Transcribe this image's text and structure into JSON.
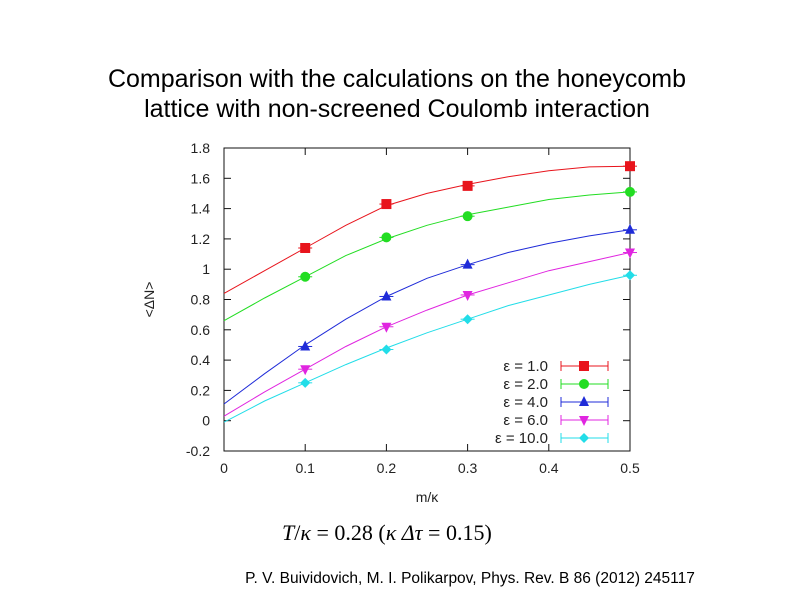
{
  "slide": {
    "title_line1": "Comparison with the calculations on the honeycomb",
    "title_line2": "lattice with non-screened Coulomb interaction",
    "formula": {
      "lhs_var": "T",
      "lhs_den": "κ",
      "value1": "= 0.28",
      "paren_open": "(",
      "kappa": "κ",
      "delta_tau": "Δτ",
      "value2": "= 0.15",
      "paren_close": ")"
    },
    "citation": "P. V. Buividovich, M. I. Polikarpov, Phys. Rev. B 86 (2012) 245117"
  },
  "chart_data": {
    "type": "line",
    "title": "",
    "xlabel": "m/κ",
    "ylabel": "<ΔN>",
    "xlim": [
      0,
      0.5
    ],
    "ylim": [
      -0.2,
      1.8
    ],
    "xticks": [
      0,
      0.1,
      0.2,
      0.3,
      0.4,
      0.5
    ],
    "xtick_labels": [
      "0",
      "0.1",
      "0.2",
      "0.3",
      "0.4",
      "0.5"
    ],
    "yticks": [
      -0.2,
      0,
      0.2,
      0.4,
      0.6,
      0.8,
      1,
      1.2,
      1.4,
      1.6,
      1.8
    ],
    "ytick_labels": [
      "-0.2",
      "0",
      "0.2",
      "0.4",
      "0.6",
      "0.8",
      "1",
      "1.2",
      "1.4",
      "1.6",
      "1.8"
    ],
    "grid": false,
    "legend_position": "bottom-right",
    "series": [
      {
        "name": "ε = 1.0",
        "color": "#e8141c",
        "marker": "square",
        "points": [
          [
            0.1,
            1.14
          ],
          [
            0.2,
            1.43
          ],
          [
            0.3,
            1.55
          ],
          [
            0.5,
            1.68
          ]
        ],
        "curve": [
          [
            0,
            0.84
          ],
          [
            0.05,
            0.99
          ],
          [
            0.1,
            1.14
          ],
          [
            0.15,
            1.29
          ],
          [
            0.2,
            1.42
          ],
          [
            0.25,
            1.5
          ],
          [
            0.3,
            1.56
          ],
          [
            0.35,
            1.61
          ],
          [
            0.4,
            1.65
          ],
          [
            0.45,
            1.675
          ],
          [
            0.5,
            1.68
          ]
        ]
      },
      {
        "name": "ε = 2.0",
        "color": "#22dd22",
        "marker": "circle",
        "points": [
          [
            0.1,
            0.95
          ],
          [
            0.2,
            1.21
          ],
          [
            0.3,
            1.35
          ],
          [
            0.5,
            1.51
          ]
        ],
        "curve": [
          [
            0,
            0.66
          ],
          [
            0.05,
            0.81
          ],
          [
            0.1,
            0.95
          ],
          [
            0.15,
            1.09
          ],
          [
            0.2,
            1.2
          ],
          [
            0.25,
            1.29
          ],
          [
            0.3,
            1.36
          ],
          [
            0.35,
            1.41
          ],
          [
            0.4,
            1.46
          ],
          [
            0.45,
            1.49
          ],
          [
            0.5,
            1.51
          ]
        ]
      },
      {
        "name": "ε = 4.0",
        "color": "#1f2bd8",
        "marker": "triangle-up",
        "points": [
          [
            0.1,
            0.49
          ],
          [
            0.2,
            0.82
          ],
          [
            0.3,
            1.03
          ],
          [
            0.5,
            1.26
          ]
        ],
        "curve": [
          [
            0,
            0.11
          ],
          [
            0.05,
            0.31
          ],
          [
            0.1,
            0.5
          ],
          [
            0.15,
            0.67
          ],
          [
            0.2,
            0.82
          ],
          [
            0.25,
            0.94
          ],
          [
            0.3,
            1.03
          ],
          [
            0.35,
            1.11
          ],
          [
            0.4,
            1.17
          ],
          [
            0.45,
            1.22
          ],
          [
            0.5,
            1.26
          ]
        ]
      },
      {
        "name": "ε = 6.0",
        "color": "#e025e0",
        "marker": "triangle-down",
        "points": [
          [
            0.1,
            0.34
          ],
          [
            0.2,
            0.62
          ],
          [
            0.3,
            0.83
          ],
          [
            0.5,
            1.11
          ]
        ],
        "curve": [
          [
            0,
            0.03
          ],
          [
            0.05,
            0.19
          ],
          [
            0.1,
            0.34
          ],
          [
            0.15,
            0.49
          ],
          [
            0.2,
            0.62
          ],
          [
            0.25,
            0.73
          ],
          [
            0.3,
            0.83
          ],
          [
            0.35,
            0.91
          ],
          [
            0.4,
            0.99
          ],
          [
            0.45,
            1.05
          ],
          [
            0.5,
            1.11
          ]
        ]
      },
      {
        "name": "ε = 10.0",
        "color": "#22dde8",
        "marker": "diamond",
        "points": [
          [
            0.1,
            0.25
          ],
          [
            0.2,
            0.47
          ],
          [
            0.3,
            0.67
          ],
          [
            0.5,
            0.96
          ]
        ],
        "curve": [
          [
            0,
            -0.01
          ],
          [
            0.05,
            0.13
          ],
          [
            0.1,
            0.25
          ],
          [
            0.15,
            0.37
          ],
          [
            0.2,
            0.48
          ],
          [
            0.25,
            0.58
          ],
          [
            0.3,
            0.67
          ],
          [
            0.35,
            0.76
          ],
          [
            0.4,
            0.83
          ],
          [
            0.45,
            0.9
          ],
          [
            0.5,
            0.96
          ]
        ]
      }
    ]
  }
}
